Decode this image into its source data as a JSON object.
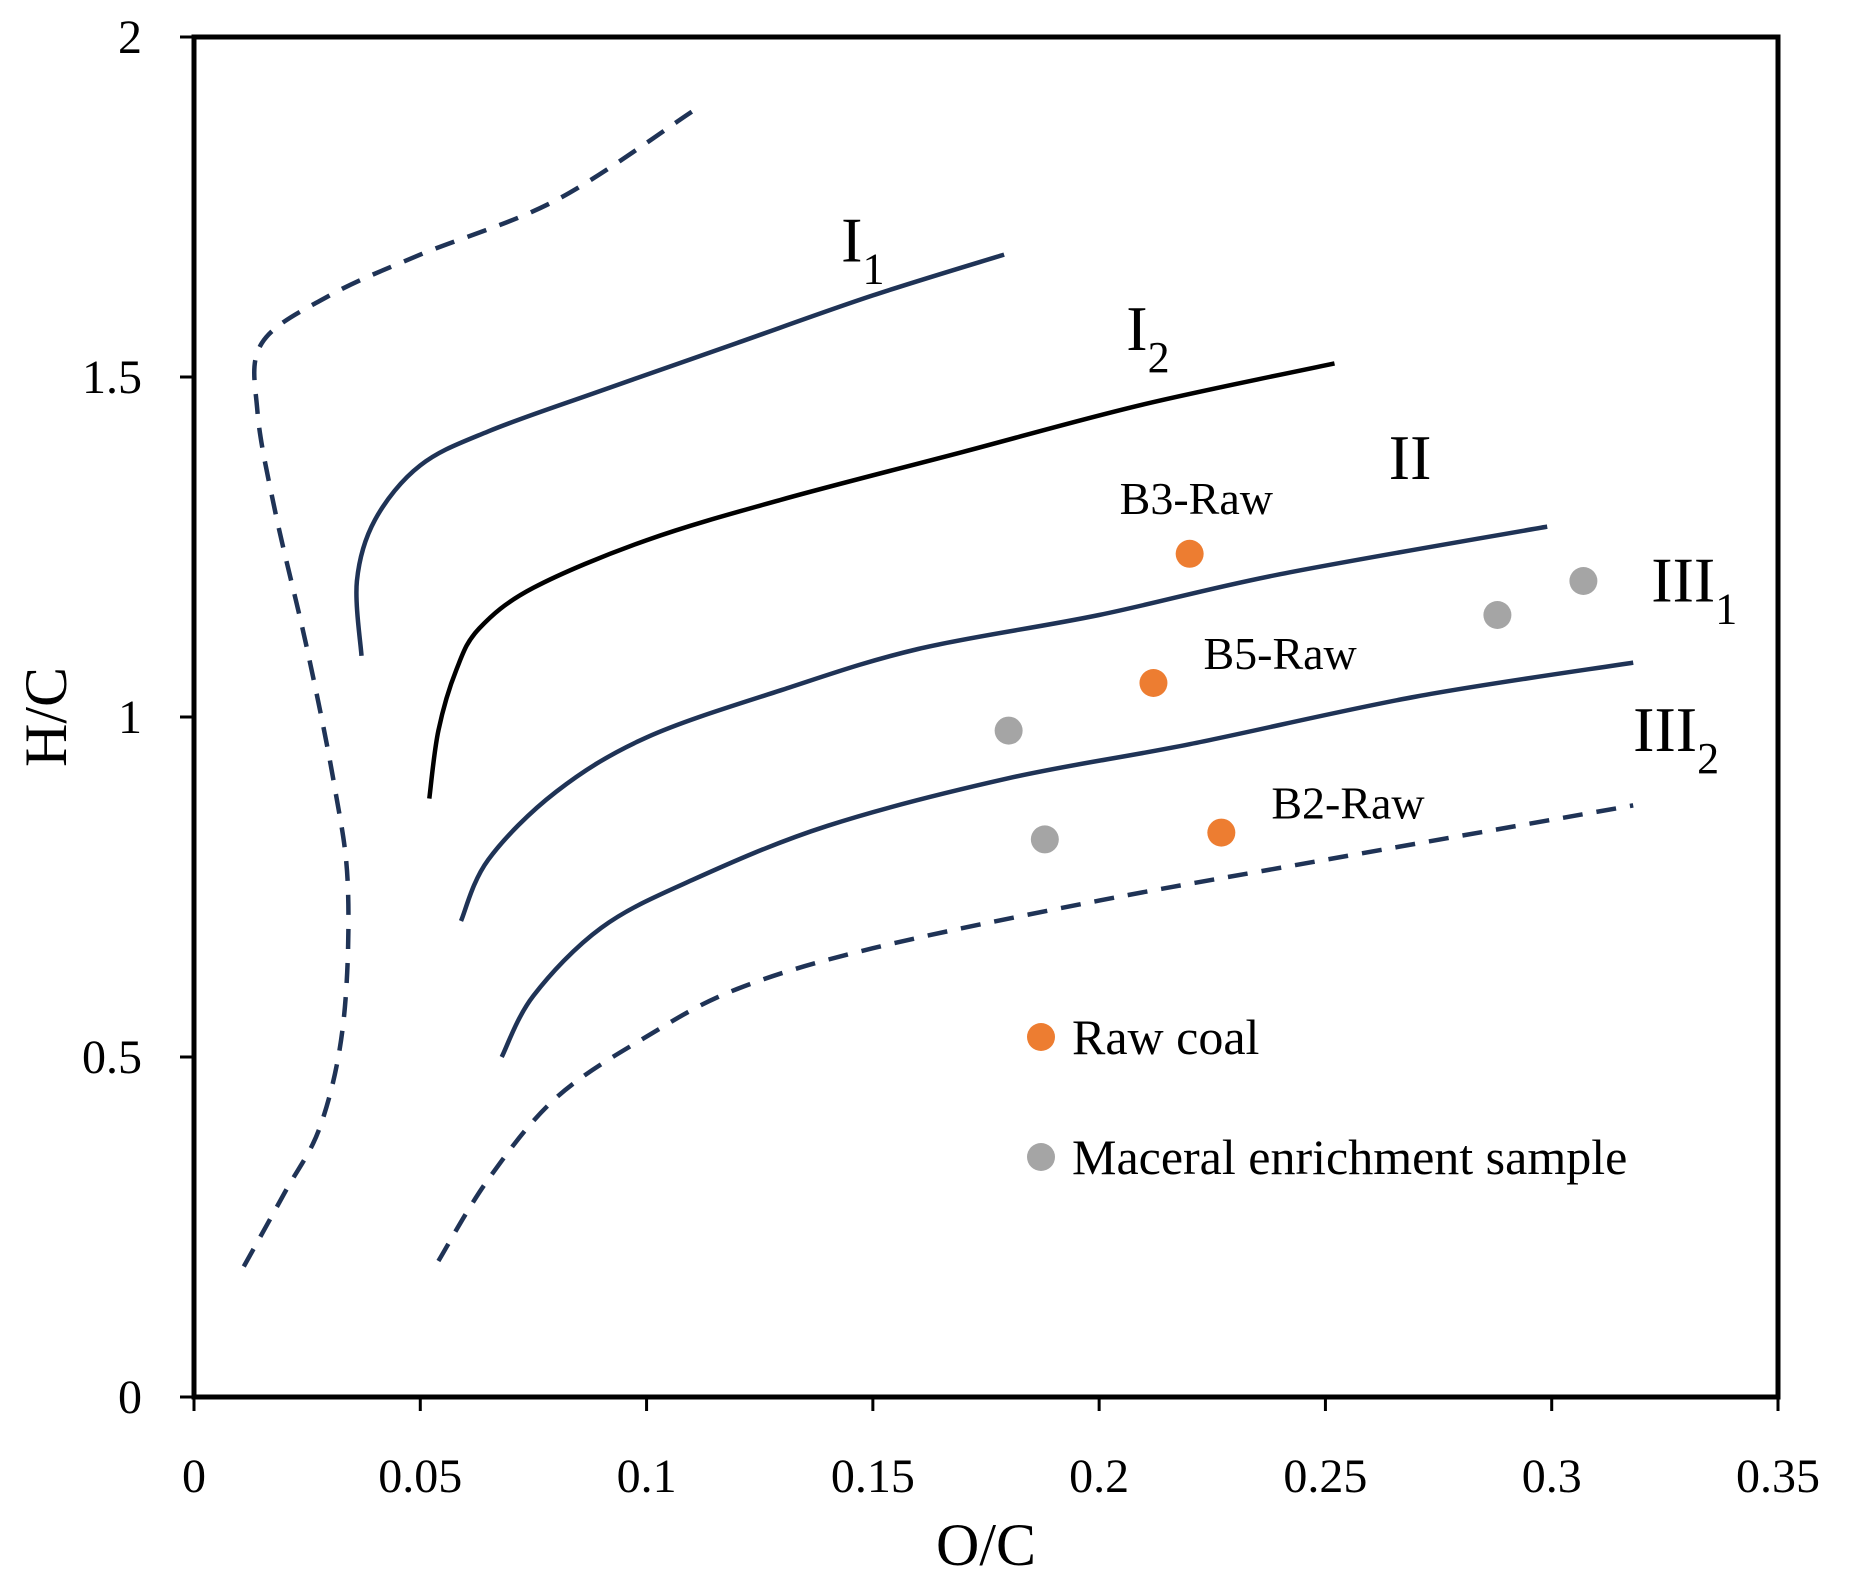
{
  "chart_data": {
    "type": "scatter",
    "xlabel": "O/C",
    "ylabel": "H/C",
    "xlim": [
      0,
      0.35
    ],
    "ylim": [
      0,
      2
    ],
    "x_ticks": [
      {
        "value": 0,
        "label": "0"
      },
      {
        "value": 0.05,
        "label": "0.05"
      },
      {
        "value": 0.1,
        "label": "0.1"
      },
      {
        "value": 0.15,
        "label": "0.15"
      },
      {
        "value": 0.2,
        "label": "0.2"
      },
      {
        "value": 0.25,
        "label": "0.25"
      },
      {
        "value": 0.3,
        "label": "0.3"
      },
      {
        "value": 0.35,
        "label": "0.35"
      }
    ],
    "y_ticks": [
      {
        "value": 0,
        "label": "0"
      },
      {
        "value": 0.5,
        "label": "0.5"
      },
      {
        "value": 1,
        "label": "1"
      },
      {
        "value": 1.5,
        "label": "1.5"
      },
      {
        "value": 2,
        "label": "2"
      }
    ],
    "boundary_curves": [
      {
        "name": "left-boundary",
        "style": "dashed",
        "color": "#1f3356",
        "points": [
          [
            0.11,
            1.89
          ],
          [
            0.08,
            1.76
          ],
          [
            0.05,
            1.68
          ],
          [
            0.03,
            1.62
          ],
          [
            0.015,
            1.55
          ],
          [
            0.014,
            1.45
          ],
          [
            0.018,
            1.3
          ],
          [
            0.025,
            1.1
          ],
          [
            0.031,
            0.9
          ],
          [
            0.034,
            0.75
          ],
          [
            0.033,
            0.55
          ],
          [
            0.028,
            0.4
          ],
          [
            0.02,
            0.3
          ],
          [
            0.01,
            0.18
          ]
        ]
      },
      {
        "name": "curve-I1",
        "style": "solid",
        "color": "#1f3356",
        "points": [
          [
            0.037,
            1.09
          ],
          [
            0.036,
            1.2
          ],
          [
            0.04,
            1.29
          ],
          [
            0.05,
            1.37
          ],
          [
            0.065,
            1.42
          ],
          [
            0.09,
            1.48
          ],
          [
            0.12,
            1.55
          ],
          [
            0.15,
            1.62
          ],
          [
            0.179,
            1.68
          ]
        ]
      },
      {
        "name": "curve-I2",
        "style": "solid",
        "color": "#000000",
        "points": [
          [
            0.052,
            0.88
          ],
          [
            0.054,
            0.98
          ],
          [
            0.058,
            1.07
          ],
          [
            0.063,
            1.13
          ],
          [
            0.075,
            1.19
          ],
          [
            0.1,
            1.26
          ],
          [
            0.13,
            1.32
          ],
          [
            0.17,
            1.39
          ],
          [
            0.21,
            1.46
          ],
          [
            0.252,
            1.52
          ]
        ]
      },
      {
        "name": "curve-II",
        "style": "solid",
        "color": "#1f3356",
        "points": [
          [
            0.059,
            0.7
          ],
          [
            0.065,
            0.79
          ],
          [
            0.08,
            0.89
          ],
          [
            0.1,
            0.97
          ],
          [
            0.13,
            1.04
          ],
          [
            0.16,
            1.1
          ],
          [
            0.2,
            1.15
          ],
          [
            0.24,
            1.21
          ],
          [
            0.299,
            1.28
          ]
        ]
      },
      {
        "name": "curve-III1",
        "style": "solid",
        "color": "#1f3356",
        "points": [
          [
            0.068,
            0.5
          ],
          [
            0.075,
            0.59
          ],
          [
            0.09,
            0.69
          ],
          [
            0.11,
            0.76
          ],
          [
            0.14,
            0.84
          ],
          [
            0.18,
            0.91
          ],
          [
            0.22,
            0.96
          ],
          [
            0.27,
            1.03
          ],
          [
            0.318,
            1.08
          ]
        ]
      },
      {
        "name": "curve-III2",
        "style": "dashed",
        "color": "#1f3356",
        "points": [
          [
            0.054,
            0.2
          ],
          [
            0.065,
            0.32
          ],
          [
            0.08,
            0.44
          ],
          [
            0.1,
            0.53
          ],
          [
            0.12,
            0.6
          ],
          [
            0.15,
            0.66
          ],
          [
            0.2,
            0.73
          ],
          [
            0.25,
            0.79
          ],
          [
            0.318,
            0.87
          ]
        ]
      }
    ],
    "region_labels": [
      {
        "main": "I",
        "sub": "1",
        "x": 0.143,
        "y": 1.67
      },
      {
        "main": "I",
        "sub": "2",
        "x": 0.206,
        "y": 1.54
      },
      {
        "main": "II",
        "sub": "",
        "x": 0.264,
        "y": 1.35
      },
      {
        "main": "III",
        "sub": "1",
        "x": 0.322,
        "y": 1.17
      },
      {
        "main": "III",
        "sub": "2",
        "x": 0.318,
        "y": 0.95
      }
    ],
    "series": [
      {
        "name": "Raw coal",
        "color": "#ed7d31",
        "points": [
          {
            "x": 0.22,
            "y": 1.24,
            "label": "B3-Raw"
          },
          {
            "x": 0.212,
            "y": 1.05,
            "label": "B5-Raw"
          },
          {
            "x": 0.227,
            "y": 0.83,
            "label": "B2-Raw"
          }
        ]
      },
      {
        "name": "Maceral enrichment sample",
        "color": "#a5a5a5",
        "points": [
          {
            "x": 0.18,
            "y": 0.98,
            "label": ""
          },
          {
            "x": 0.188,
            "y": 0.82,
            "label": ""
          },
          {
            "x": 0.288,
            "y": 1.15,
            "label": ""
          },
          {
            "x": 0.307,
            "y": 1.2,
            "label": ""
          }
        ]
      }
    ],
    "legend_position": "bottom-right"
  }
}
